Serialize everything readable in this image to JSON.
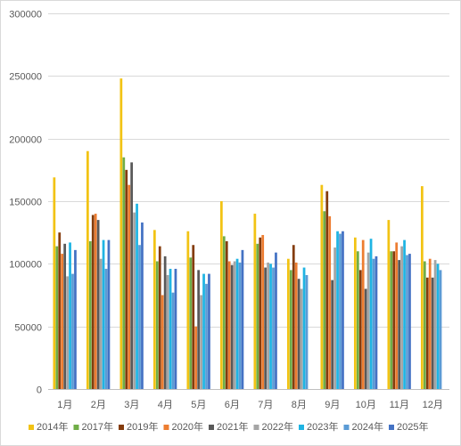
{
  "chart_data": {
    "type": "bar",
    "title": "",
    "xlabel": "",
    "ylabel": "",
    "ylim": [
      0,
      300000
    ],
    "yticks": [
      0,
      50000,
      100000,
      150000,
      200000,
      250000,
      300000
    ],
    "grid": true,
    "legend_position": "bottom",
    "categories": [
      "1月",
      "2月",
      "3月",
      "4月",
      "5月",
      "6月",
      "7月",
      "8月",
      "9月",
      "10月",
      "11月",
      "12月"
    ],
    "series": [
      {
        "name": "2014年",
        "color": "#f2c314",
        "values": [
          169000,
          190000,
          248000,
          127000,
          126000,
          150000,
          140000,
          104000,
          163000,
          121000,
          135000,
          162000
        ]
      },
      {
        "name": "2017年",
        "color": "#70ad47",
        "values": [
          114000,
          118000,
          185000,
          102000,
          105000,
          122000,
          116000,
          95000,
          142000,
          110000,
          110000,
          102000
        ]
      },
      {
        "name": "2019年",
        "color": "#843c0c",
        "values": [
          125000,
          139000,
          175000,
          114000,
          115000,
          118000,
          121000,
          115000,
          158000,
          95000,
          110000,
          89000
        ]
      },
      {
        "name": "2020年",
        "color": "#ed7d31",
        "values": [
          108000,
          140000,
          163000,
          75000,
          50000,
          102000,
          123000,
          101000,
          138000,
          119000,
          117000,
          104000
        ]
      },
      {
        "name": "2021年",
        "color": "#595959",
        "values": [
          116000,
          135000,
          181000,
          106000,
          95000,
          99000,
          97000,
          88000,
          87000,
          80000,
          103000,
          89000
        ]
      },
      {
        "name": "2022年",
        "color": "#a5a5a5",
        "values": [
          90000,
          104000,
          141000,
          91000,
          75000,
          102000,
          101000,
          80000,
          113000,
          109000,
          114000,
          103000
        ]
      },
      {
        "name": "2023年",
        "color": "#1fb4e3",
        "values": [
          117000,
          119000,
          148000,
          96000,
          92000,
          104000,
          100000,
          97000,
          126000,
          120000,
          119000,
          100000
        ]
      },
      {
        "name": "2024年",
        "color": "#5b9bd5",
        "values": [
          92000,
          96000,
          115000,
          77000,
          84000,
          101000,
          97000,
          91000,
          124000,
          104000,
          107000,
          95000
        ]
      },
      {
        "name": "2025年",
        "color": "#4472c4",
        "values": [
          111000,
          119000,
          133000,
          96000,
          92000,
          111000,
          109000,
          0,
          126000,
          106000,
          108000,
          0
        ]
      }
    ]
  }
}
